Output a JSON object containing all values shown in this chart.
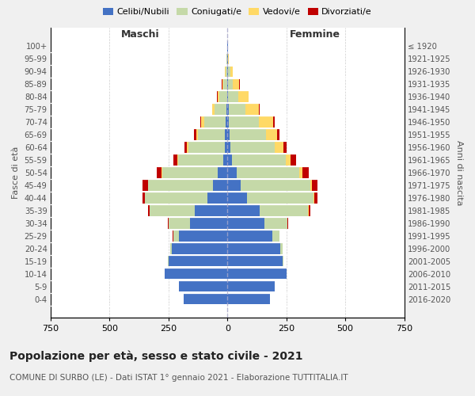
{
  "age_groups": [
    "0-4",
    "5-9",
    "10-14",
    "15-19",
    "20-24",
    "25-29",
    "30-34",
    "35-39",
    "40-44",
    "45-49",
    "50-54",
    "55-59",
    "60-64",
    "65-69",
    "70-74",
    "75-79",
    "80-84",
    "85-89",
    "90-94",
    "95-99",
    "100+"
  ],
  "birth_years": [
    "2016-2020",
    "2011-2015",
    "2006-2010",
    "2001-2005",
    "1996-2000",
    "1991-1995",
    "1986-1990",
    "1981-1985",
    "1976-1980",
    "1971-1975",
    "1966-1970",
    "1961-1965",
    "1956-1960",
    "1951-1955",
    "1946-1950",
    "1941-1945",
    "1936-1940",
    "1931-1935",
    "1926-1930",
    "1921-1925",
    "≤ 1920"
  ],
  "males": {
    "celibe": [
      185,
      205,
      265,
      250,
      235,
      205,
      160,
      140,
      85,
      60,
      40,
      18,
      12,
      10,
      8,
      4,
      2,
      2,
      1,
      1,
      1
    ],
    "coniugato": [
      0,
      0,
      1,
      2,
      8,
      25,
      90,
      190,
      265,
      275,
      235,
      190,
      155,
      115,
      90,
      50,
      32,
      15,
      7,
      2,
      1
    ],
    "vedovo": [
      0,
      0,
      0,
      0,
      0,
      0,
      0,
      1,
      1,
      2,
      3,
      4,
      5,
      8,
      12,
      10,
      8,
      5,
      2,
      0,
      0
    ],
    "divorziato": [
      0,
      0,
      0,
      0,
      0,
      1,
      2,
      5,
      10,
      22,
      22,
      18,
      10,
      8,
      5,
      2,
      1,
      1,
      0,
      0,
      0
    ]
  },
  "females": {
    "nubile": [
      180,
      200,
      250,
      235,
      225,
      192,
      158,
      138,
      82,
      55,
      38,
      20,
      14,
      10,
      7,
      5,
      3,
      3,
      2,
      1,
      1
    ],
    "coniugata": [
      0,
      0,
      1,
      3,
      10,
      28,
      95,
      205,
      282,
      295,
      268,
      228,
      188,
      152,
      128,
      73,
      42,
      20,
      9,
      3,
      1
    ],
    "vedova": [
      0,
      0,
      0,
      0,
      0,
      0,
      1,
      2,
      4,
      8,
      12,
      20,
      35,
      50,
      58,
      55,
      44,
      28,
      12,
      2,
      0
    ],
    "divorziata": [
      0,
      0,
      0,
      0,
      0,
      1,
      3,
      8,
      15,
      25,
      28,
      22,
      15,
      10,
      6,
      3,
      2,
      1,
      0,
      0,
      0
    ]
  },
  "colors": {
    "celibe": "#4472c4",
    "coniugato": "#c5d9a8",
    "vedovo": "#ffd966",
    "divorziato": "#c00000"
  },
  "xlim": 750,
  "title": "Popolazione per età, sesso e stato civile - 2021",
  "subtitle": "COMUNE DI SURBO (LE) - Dati ISTAT 1° gennaio 2021 - Elaborazione TUTTITALIA.IT",
  "xlabel_left": "Maschi",
  "xlabel_right": "Femmine",
  "ylabel_left": "Fasce di età",
  "ylabel_right": "Anni di nascita",
  "bg_color": "#f0f0f0",
  "plot_bg_color": "#ffffff"
}
